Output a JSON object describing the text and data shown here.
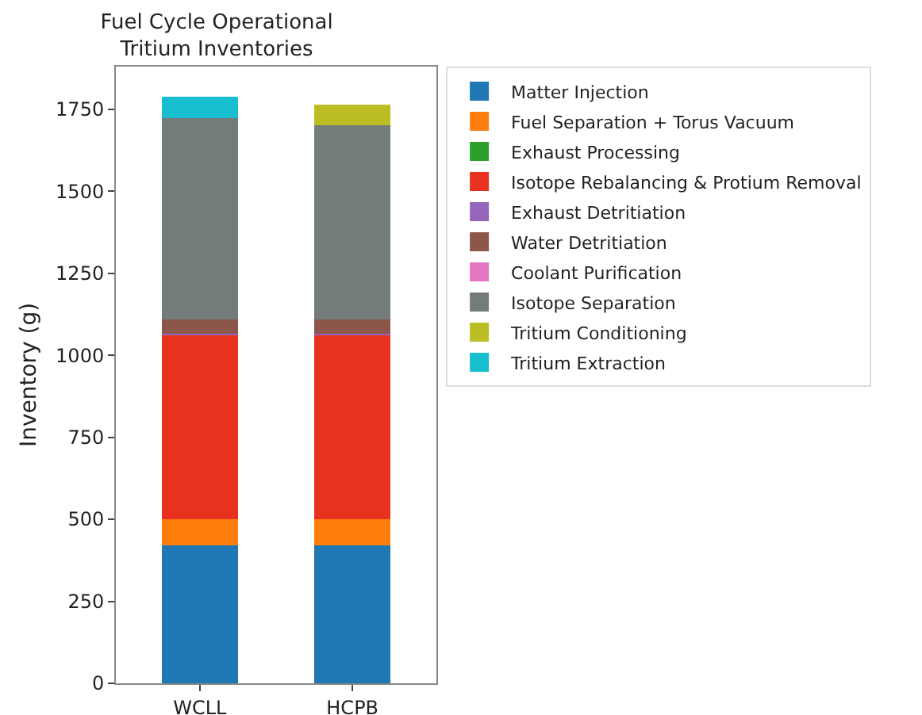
{
  "chart_data": {
    "type": "bar",
    "title": "Fuel Cycle Operational\nTritium Inventories",
    "ylabel": "Inventory (g)",
    "categories": [
      "WCLL",
      "HCPB"
    ],
    "stacked": true,
    "ylim": [
      0,
      1880
    ],
    "yticks": [
      0,
      250,
      500,
      750,
      1000,
      1250,
      1500,
      1750
    ],
    "grid": false,
    "legend": "right",
    "series": [
      {
        "name": "Matter Injection",
        "color": "#1f77b4",
        "values": [
          420,
          420
        ]
      },
      {
        "name": "Fuel Separation + Torus Vacuum",
        "color": "#ff7f0e",
        "values": [
          80,
          80
        ]
      },
      {
        "name": "Exhaust Processing",
        "color": "#2ca02c",
        "values": [
          0,
          0
        ]
      },
      {
        "name": "Isotope Rebalancing & Protium Removal",
        "color": "#e8311e",
        "values": [
          560,
          560
        ]
      },
      {
        "name": "Exhaust Detritiation",
        "color": "#9467bd",
        "values": [
          5,
          5
        ]
      },
      {
        "name": "Water Detritiation",
        "color": "#8c564b",
        "values": [
          45,
          45
        ]
      },
      {
        "name": "Coolant Purification",
        "color": "#e377c2",
        "values": [
          0,
          0
        ]
      },
      {
        "name": "Isotope Separation",
        "color": "#737b7b",
        "values": [
          612,
          590
        ]
      },
      {
        "name": "Tritium Conditioning",
        "color": "#bcbd22",
        "values": [
          0,
          65
        ]
      },
      {
        "name": "Tritium Extraction",
        "color": "#17becf",
        "values": [
          65,
          0
        ]
      }
    ]
  }
}
